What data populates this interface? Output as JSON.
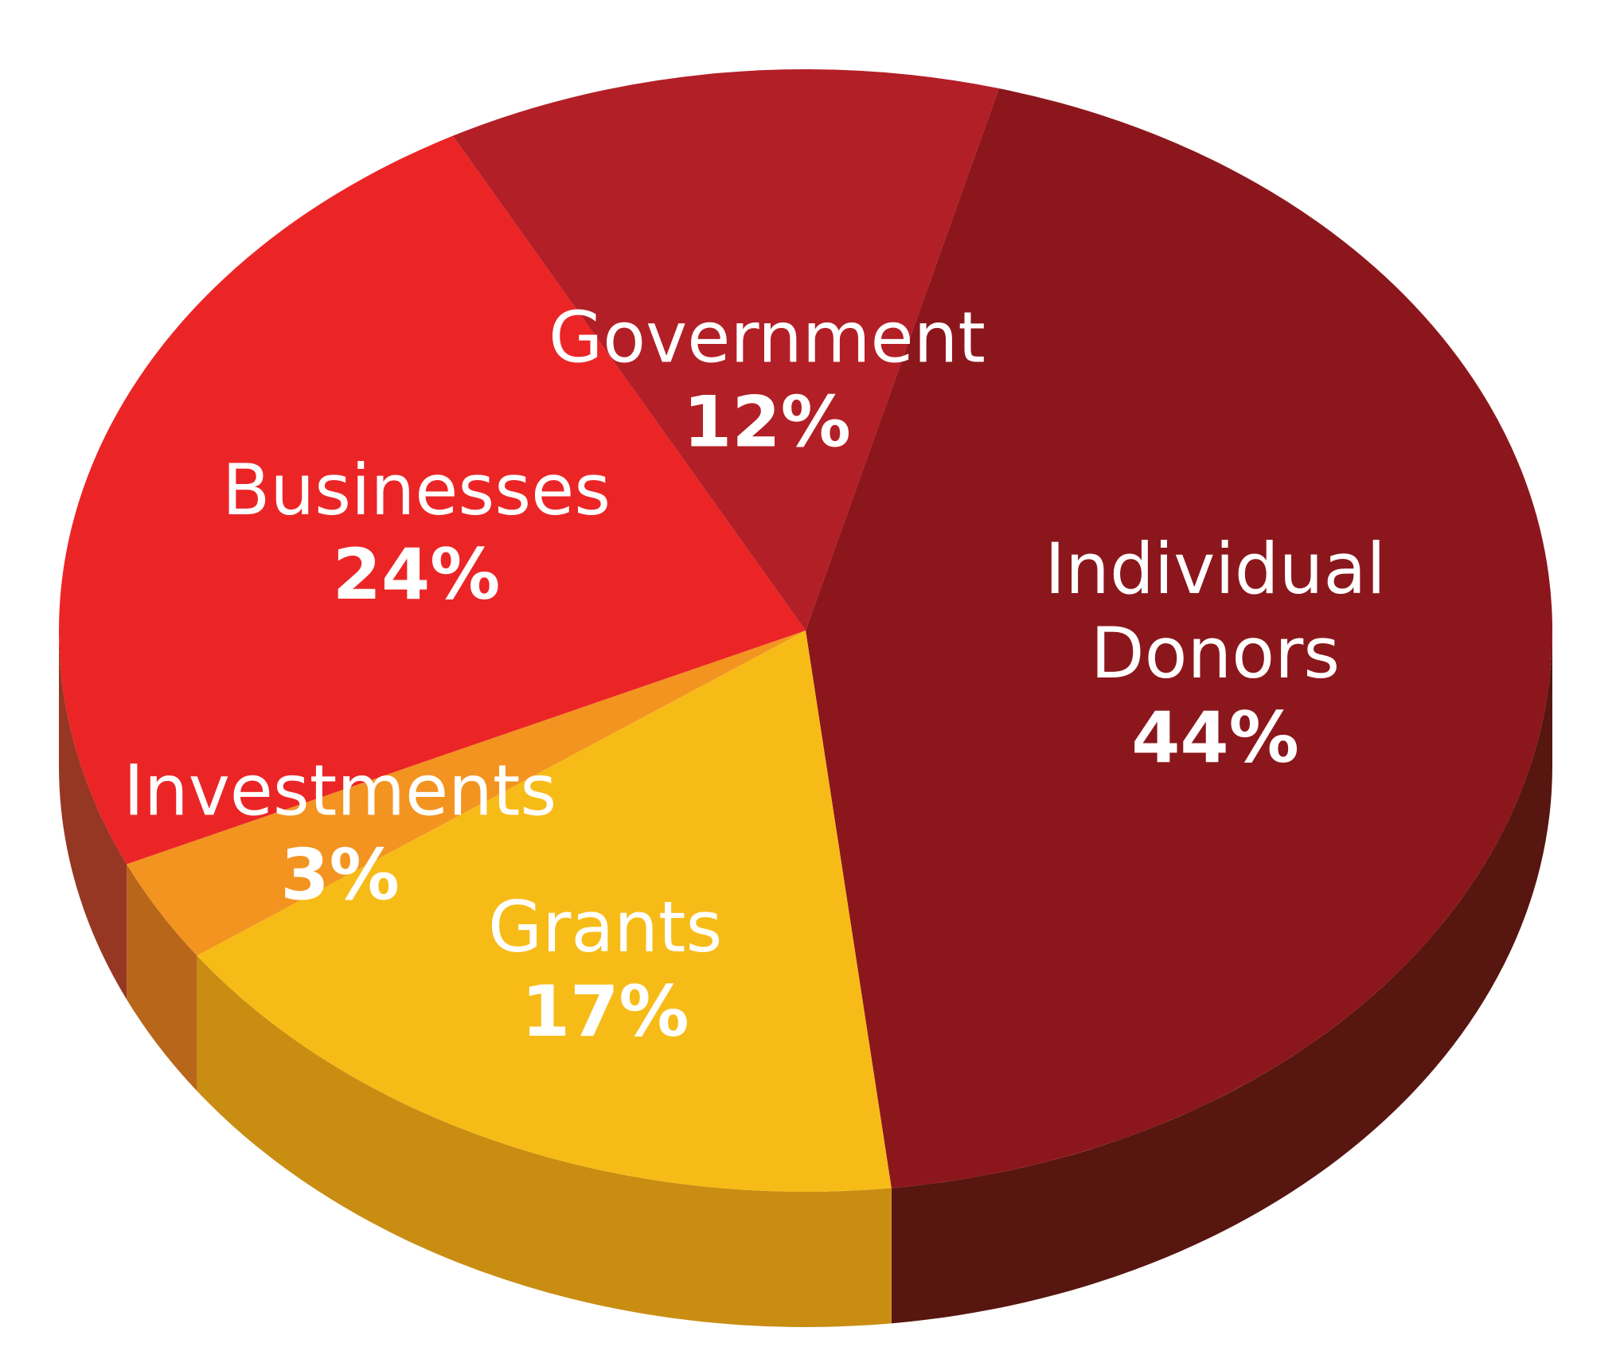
{
  "chart_data": {
    "type": "pie",
    "style": "3d-perspective",
    "title": "",
    "legend": "none",
    "slices": [
      {
        "label_lines": [
          "Individual",
          "Donors"
        ],
        "value": 44,
        "value_label": "44%",
        "color": "#8B171C",
        "side_color": "#571610"
      },
      {
        "label_lines": [
          "Grants"
        ],
        "value": 17,
        "value_label": "17%",
        "color": "#F7BB18",
        "side_color": "#C98D12"
      },
      {
        "label_lines": [
          "Investments"
        ],
        "value": 3,
        "value_label": "3%",
        "color": "#F39421",
        "side_color": "#B8661A"
      },
      {
        "label_lines": [
          "Businesses"
        ],
        "value": 24,
        "value_label": "24%",
        "color": "#EB2526",
        "side_color": "#963723"
      },
      {
        "label_lines": [
          "Government"
        ],
        "value": 12,
        "value_label": "12%",
        "color": "#B31F26",
        "side_color": "#571610"
      }
    ]
  }
}
